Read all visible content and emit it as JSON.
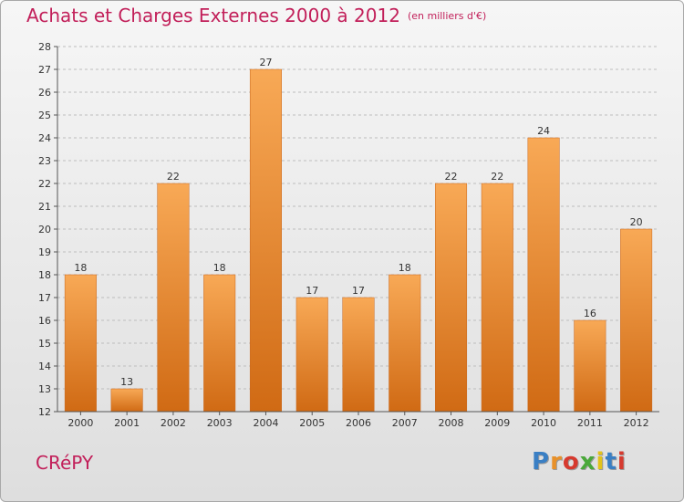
{
  "header": {
    "title": "Achats et Charges Externes 2000 à 2012",
    "subtitle": "(en milliers d'€)"
  },
  "footer": {
    "commune": "CRéPY",
    "brand": {
      "letters": [
        "P",
        "r",
        "o",
        "x",
        "i",
        "t",
        "i"
      ],
      "colors": [
        "#3a7fc4",
        "#e8912a",
        "#d63a2f",
        "#4aa83a",
        "#e3c21a",
        "#3a7fc4",
        "#d63a2f"
      ]
    }
  },
  "colors": {
    "bar_light": "#f8a956",
    "bar_dark": "#d06a14",
    "grid": "#bdbdbd",
    "axis": "#555555",
    "title": "#c2205a"
  },
  "chart_data": {
    "type": "bar",
    "title": "Achats et Charges Externes 2000 à 2012",
    "subtitle": "(en milliers d'€)",
    "xlabel": "",
    "ylabel": "",
    "categories": [
      "2000",
      "2001",
      "2002",
      "2003",
      "2004",
      "2005",
      "2006",
      "2007",
      "2008",
      "2009",
      "2010",
      "2011",
      "2012"
    ],
    "values": [
      18,
      13,
      22,
      18,
      27,
      17,
      17,
      18,
      22,
      22,
      24,
      16,
      20
    ],
    "ylim": [
      12,
      28
    ],
    "yticks": [
      12,
      13,
      14,
      15,
      16,
      17,
      18,
      19,
      20,
      21,
      22,
      23,
      24,
      25,
      26,
      27,
      28
    ],
    "grid": true,
    "legend": "none",
    "data_labels": true
  }
}
